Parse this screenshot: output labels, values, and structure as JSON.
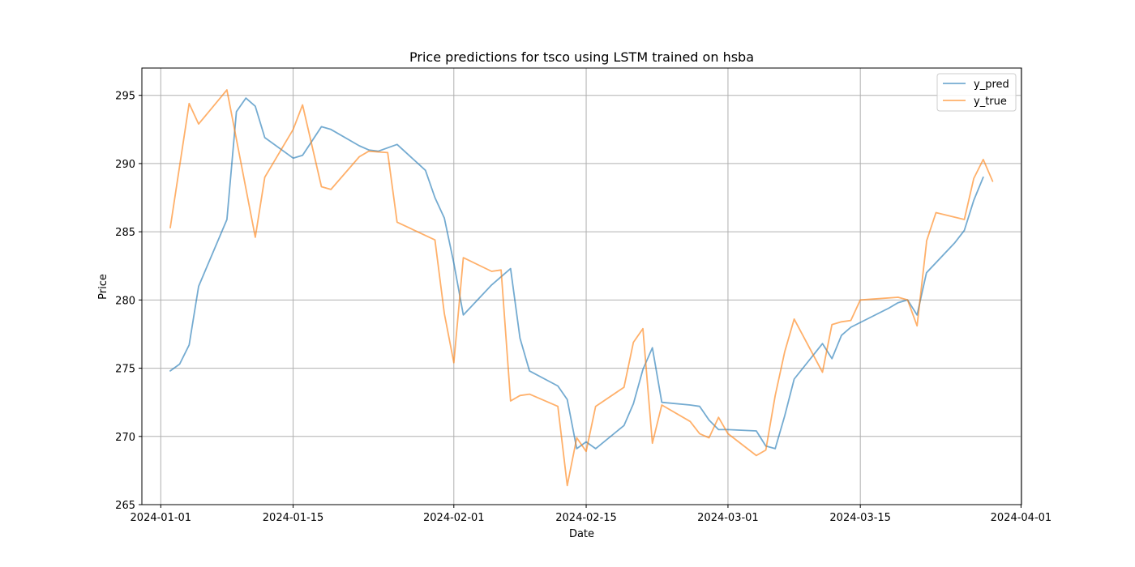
{
  "chart_data": {
    "type": "line",
    "title": "Price predictions for tsco using LSTM trained on hsba",
    "xlabel": "Date",
    "ylabel": "Price",
    "xlim": [
      "2024-01-01",
      "2024-04-01"
    ],
    "ylim": [
      265,
      297
    ],
    "x_ticks": [
      "2024-01-01",
      "2024-01-15",
      "2024-02-01",
      "2024-02-15",
      "2024-03-01",
      "2024-03-15",
      "2024-04-01"
    ],
    "y_ticks": [
      265,
      270,
      275,
      280,
      285,
      290,
      295
    ],
    "grid": true,
    "legend_position": "top-right",
    "series": [
      {
        "name": "y_pred",
        "color": "#1f77b4",
        "points": [
          [
            "2024-01-02",
            274.8
          ],
          [
            "2024-01-03",
            275.3
          ],
          [
            "2024-01-04",
            276.7
          ],
          [
            "2024-01-05",
            281.0
          ],
          [
            "2024-01-08",
            285.9
          ],
          [
            "2024-01-09",
            293.8
          ],
          [
            "2024-01-10",
            294.8
          ],
          [
            "2024-01-11",
            294.2
          ],
          [
            "2024-01-12",
            291.9
          ],
          [
            "2024-01-15",
            290.4
          ],
          [
            "2024-01-16",
            290.6
          ],
          [
            "2024-01-18",
            292.7
          ],
          [
            "2024-01-19",
            292.5
          ],
          [
            "2024-01-22",
            291.3
          ],
          [
            "2024-01-23",
            291.0
          ],
          [
            "2024-01-24",
            290.9
          ],
          [
            "2024-01-26",
            291.4
          ],
          [
            "2024-01-29",
            289.5
          ],
          [
            "2024-01-30",
            287.5
          ],
          [
            "2024-01-31",
            286.0
          ],
          [
            "2024-02-01",
            282.7
          ],
          [
            "2024-02-02",
            278.9
          ],
          [
            "2024-02-05",
            281.1
          ],
          [
            "2024-02-06",
            281.7
          ],
          [
            "2024-02-07",
            282.3
          ],
          [
            "2024-02-08",
            277.2
          ],
          [
            "2024-02-09",
            274.8
          ],
          [
            "2024-02-12",
            273.7
          ],
          [
            "2024-02-13",
            272.7
          ],
          [
            "2024-02-14",
            269.1
          ],
          [
            "2024-02-15",
            269.6
          ],
          [
            "2024-02-16",
            269.1
          ],
          [
            "2024-02-19",
            270.8
          ],
          [
            "2024-02-20",
            272.4
          ],
          [
            "2024-02-21",
            274.9
          ],
          [
            "2024-02-22",
            276.5
          ],
          [
            "2024-02-23",
            272.5
          ],
          [
            "2024-02-26",
            272.3
          ],
          [
            "2024-02-27",
            272.2
          ],
          [
            "2024-02-28",
            271.2
          ],
          [
            "2024-02-29",
            270.5
          ],
          [
            "2024-03-01",
            270.5
          ],
          [
            "2024-03-04",
            270.4
          ],
          [
            "2024-03-05",
            269.3
          ],
          [
            "2024-03-06",
            269.1
          ],
          [
            "2024-03-07",
            271.5
          ],
          [
            "2024-03-08",
            274.2
          ],
          [
            "2024-03-11",
            276.8
          ],
          [
            "2024-03-12",
            275.7
          ],
          [
            "2024-03-13",
            277.4
          ],
          [
            "2024-03-14",
            278.0
          ],
          [
            "2024-03-18",
            279.4
          ],
          [
            "2024-03-19",
            279.8
          ],
          [
            "2024-03-20",
            280.0
          ],
          [
            "2024-03-21",
            278.9
          ],
          [
            "2024-03-22",
            282.0
          ],
          [
            "2024-03-25",
            284.2
          ],
          [
            "2024-03-26",
            285.1
          ],
          [
            "2024-03-27",
            287.3
          ],
          [
            "2024-03-28",
            289.0
          ]
        ]
      },
      {
        "name": "y_true",
        "color": "#ff7f0e",
        "points": [
          [
            "2024-01-02",
            285.3
          ],
          [
            "2024-01-04",
            294.4
          ],
          [
            "2024-01-05",
            292.9
          ],
          [
            "2024-01-08",
            295.4
          ],
          [
            "2024-01-11",
            284.6
          ],
          [
            "2024-01-12",
            289.0
          ],
          [
            "2024-01-15",
            292.5
          ],
          [
            "2024-01-16",
            294.3
          ],
          [
            "2024-01-18",
            288.3
          ],
          [
            "2024-01-19",
            288.1
          ],
          [
            "2024-01-22",
            290.5
          ],
          [
            "2024-01-23",
            290.9
          ],
          [
            "2024-01-25",
            290.8
          ],
          [
            "2024-01-26",
            285.7
          ],
          [
            "2024-01-30",
            284.4
          ],
          [
            "2024-01-31",
            279.0
          ],
          [
            "2024-02-01",
            275.4
          ],
          [
            "2024-02-02",
            283.1
          ],
          [
            "2024-02-05",
            282.1
          ],
          [
            "2024-02-06",
            282.2
          ],
          [
            "2024-02-07",
            272.6
          ],
          [
            "2024-02-08",
            273.0
          ],
          [
            "2024-02-09",
            273.1
          ],
          [
            "2024-02-12",
            272.2
          ],
          [
            "2024-02-13",
            266.4
          ],
          [
            "2024-02-14",
            269.9
          ],
          [
            "2024-02-15",
            268.9
          ],
          [
            "2024-02-16",
            272.2
          ],
          [
            "2024-02-19",
            273.6
          ],
          [
            "2024-02-20",
            276.9
          ],
          [
            "2024-02-21",
            277.9
          ],
          [
            "2024-02-22",
            269.5
          ],
          [
            "2024-02-23",
            272.3
          ],
          [
            "2024-02-26",
            271.1
          ],
          [
            "2024-02-27",
            270.2
          ],
          [
            "2024-02-28",
            269.9
          ],
          [
            "2024-02-29",
            271.4
          ],
          [
            "2024-03-01",
            270.2
          ],
          [
            "2024-03-04",
            268.6
          ],
          [
            "2024-03-05",
            269.0
          ],
          [
            "2024-03-06",
            273.0
          ],
          [
            "2024-03-07",
            276.2
          ],
          [
            "2024-03-08",
            278.6
          ],
          [
            "2024-03-11",
            274.7
          ],
          [
            "2024-03-12",
            278.2
          ],
          [
            "2024-03-13",
            278.4
          ],
          [
            "2024-03-14",
            278.5
          ],
          [
            "2024-03-15",
            280.0
          ],
          [
            "2024-03-19",
            280.2
          ],
          [
            "2024-03-20",
            280.0
          ],
          [
            "2024-03-21",
            278.1
          ],
          [
            "2024-03-22",
            284.2
          ],
          [
            "2024-03-22",
            284.3
          ],
          [
            "2024-03-23",
            286.4
          ],
          [
            "2024-03-26",
            285.9
          ],
          [
            "2024-03-27",
            288.9
          ],
          [
            "2024-03-28",
            290.3
          ],
          [
            "2024-03-29",
            288.7
          ]
        ]
      }
    ]
  }
}
